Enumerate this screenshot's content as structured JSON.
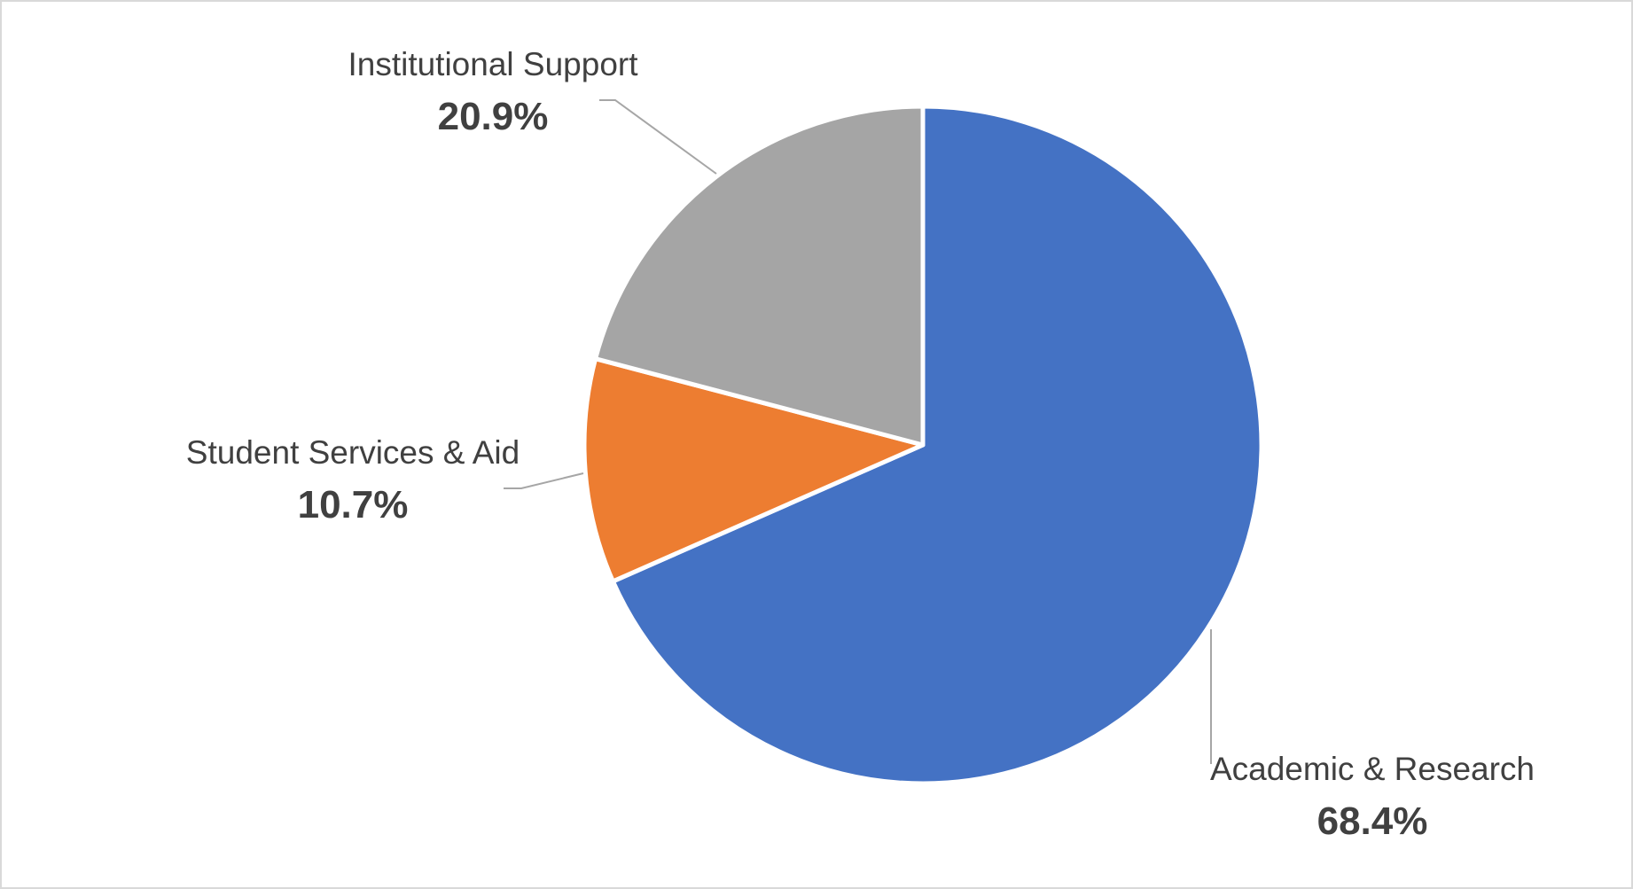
{
  "chart_data": {
    "type": "pie",
    "start_angle_deg": 0,
    "direction": "clockwise",
    "slices": [
      {
        "name": "Academic & Research",
        "value": 68.4,
        "label_value": "68.4%",
        "color": "#4472C4"
      },
      {
        "name": "Student Services & Aid",
        "value": 10.7,
        "label_value": "10.7%",
        "color": "#ED7D31"
      },
      {
        "name": "Institutional Support",
        "value": 20.9,
        "label_value": "20.9%",
        "color": "#A5A5A5"
      }
    ],
    "title": "",
    "legend": "none",
    "leader_line_color": "#a6a6a6",
    "slice_border_color": "#ffffff"
  }
}
